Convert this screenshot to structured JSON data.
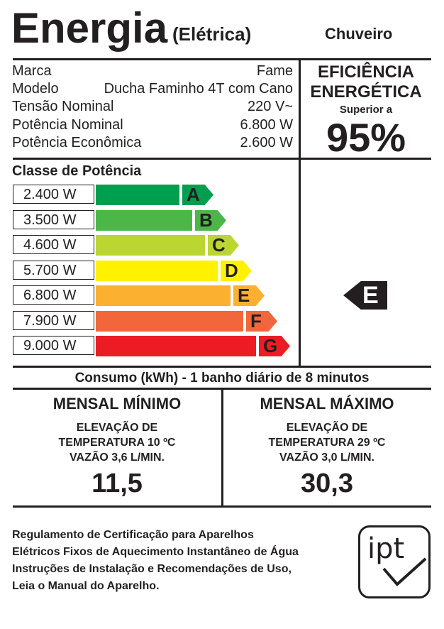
{
  "header": {
    "title": "Energia",
    "subtitle": "(Elétrica)",
    "product": "Chuveiro"
  },
  "specs": [
    {
      "key": "Marca",
      "value": "Fame"
    },
    {
      "key": "Modelo",
      "value": "Ducha Faminho 4T com Cano"
    },
    {
      "key": "Tensão Nominal",
      "value": "220 V~"
    },
    {
      "key": "Potência Nominal",
      "value": "6.800 W"
    },
    {
      "key": "Potência Econômica",
      "value": "2.600 W"
    }
  ],
  "efficiency": {
    "line1": "EFICIÊNCIA",
    "line2": "ENERGÉTICA",
    "sub": "Superior a",
    "value": "95%"
  },
  "classes": {
    "title": "Classe de Potência",
    "rows": [
      {
        "power": "2.400 W",
        "letter": "A",
        "color": "#009e4f"
      },
      {
        "power": "3.500 W",
        "letter": "B",
        "color": "#4cb748"
      },
      {
        "power": "4.600 W",
        "letter": "C",
        "color": "#bcd631"
      },
      {
        "power": "5.700 W",
        "letter": "D",
        "color": "#fff200"
      },
      {
        "power": "6.800 W",
        "letter": "E",
        "color": "#fbb12f"
      },
      {
        "power": "7.900 W",
        "letter": "F",
        "color": "#f2663b"
      },
      {
        "power": "9.000 W",
        "letter": "G",
        "color": "#ed1c24"
      }
    ],
    "indicator": "E"
  },
  "consumo": {
    "title": "Consumo (kWh) - 1 banho diário de 8 minutos",
    "min": {
      "head": "MENSAL MÍNIMO",
      "line1": "ELEVAÇÃO DE",
      "line2": "TEMPERATURA 10 ºC",
      "line3": "VAZÃO 3,6 L/MIN.",
      "value": "11,5"
    },
    "max": {
      "head": "MENSAL MÁXIMO",
      "line1": "ELEVAÇÃO DE",
      "line2": "TEMPERATURA 29 ºC",
      "line3": "VAZÃO 3,0 L/MIN.",
      "value": "30,3"
    }
  },
  "footer": {
    "lines": [
      "Regulamento de Certificação para Aparelhos",
      "Elétricos Fixos de Aquecimento Instantâneo de Água",
      "Instruções de Instalação e Recomendações de Uso,",
      "Leia o Manual do Aparelho."
    ],
    "logo": "ipt"
  }
}
